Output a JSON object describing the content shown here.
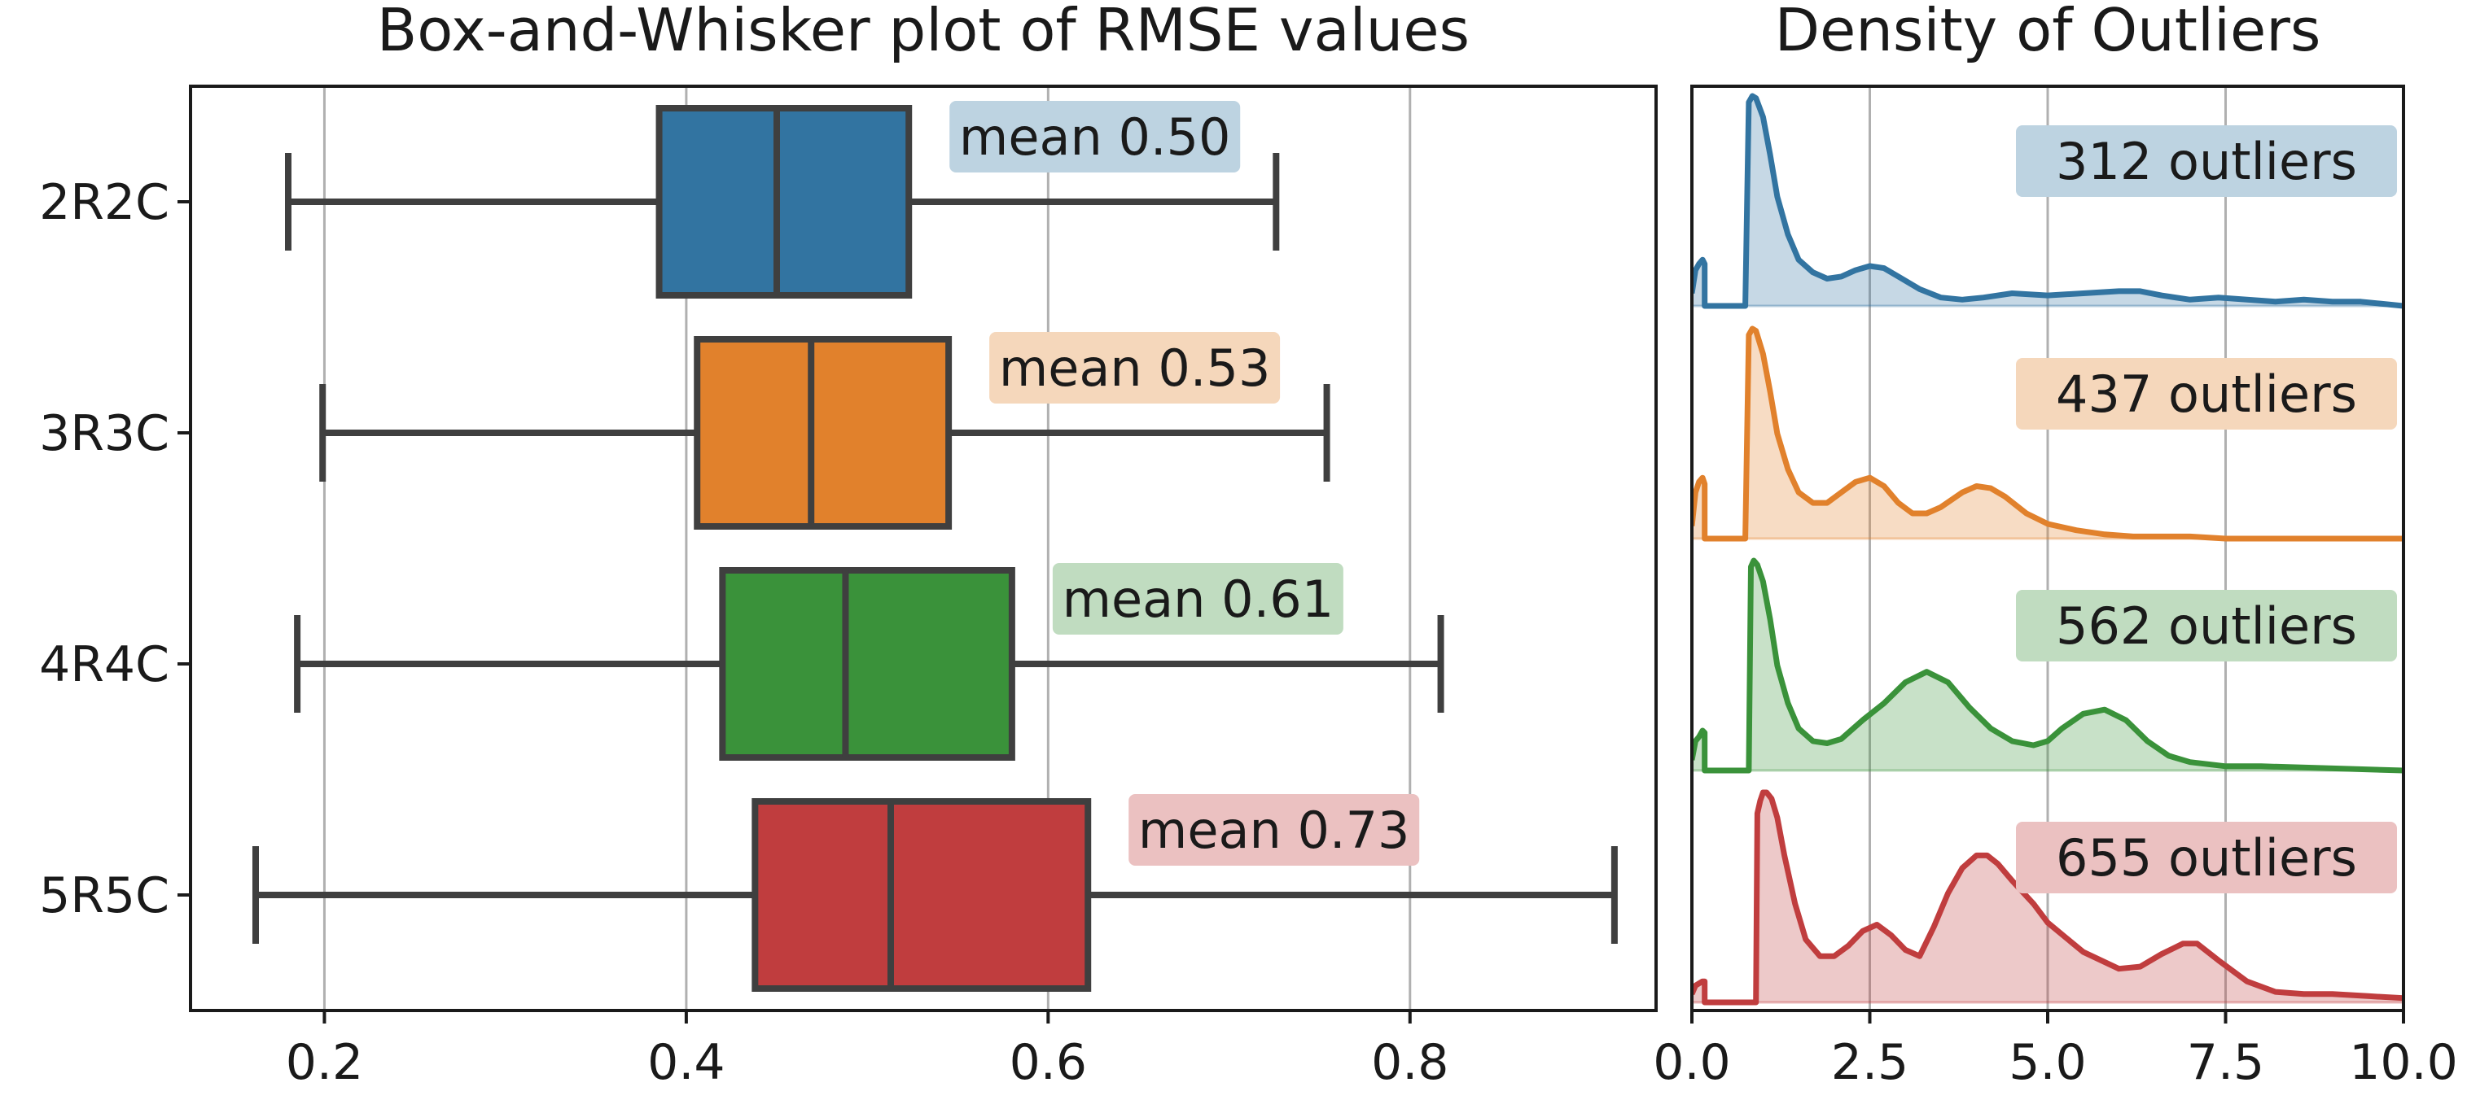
{
  "chart_data": [
    {
      "type": "box",
      "title": "Box-and-Whisker plot of RMSE values",
      "xlabel": "",
      "ylabel": "",
      "xlim": [
        0.126,
        0.936
      ],
      "xticks": [
        "0.2",
        "0.4",
        "0.6",
        "0.8"
      ],
      "xtick_values": [
        0.2,
        0.4,
        0.6,
        0.8
      ],
      "grid": "vertical",
      "categories": [
        "2R2C",
        "3R3C",
        "4R4C",
        "5R5C"
      ],
      "series": [
        {
          "name": "2R2C",
          "whisker_low": 0.18,
          "q1": 0.385,
          "median": 0.45,
          "q3": 0.523,
          "whisker_high": 0.726,
          "annotation": "mean 0.50",
          "color": "#3274a1"
        },
        {
          "name": "3R3C",
          "whisker_low": 0.199,
          "q1": 0.406,
          "median": 0.469,
          "q3": 0.545,
          "whisker_high": 0.754,
          "annotation": "mean 0.53",
          "color": "#e1812c"
        },
        {
          "name": "4R4C",
          "whisker_low": 0.185,
          "q1": 0.42,
          "median": 0.488,
          "q3": 0.58,
          "whisker_high": 0.817,
          "annotation": "mean 0.61",
          "color": "#3a923a"
        },
        {
          "name": "5R5C",
          "whisker_low": 0.162,
          "q1": 0.438,
          "median": 0.513,
          "q3": 0.622,
          "whisker_high": 0.913,
          "annotation": "mean 0.73",
          "color": "#c03d3e"
        }
      ]
    },
    {
      "type": "area",
      "title": "Density of Outliers",
      "xlabel": "",
      "ylabel": "",
      "xlim": [
        0.0,
        10.0
      ],
      "xticks": [
        "0.0",
        "2.5",
        "5.0",
        "7.5",
        "10.0"
      ],
      "xtick_values": [
        0.0,
        2.5,
        5.0,
        7.5,
        10.0
      ],
      "grid": "vertical",
      "ymax": 1.0,
      "series": [
        {
          "name": "2R2C",
          "annotation": "312 outliers",
          "color": "#3274a1",
          "x": [
            0,
            0.05,
            0.1,
            0.15,
            0.18,
            0.18,
            0.4,
            0.6,
            0.7,
            0.72,
            0.75,
            0.8,
            0.85,
            0.9,
            1.0,
            1.1,
            1.2,
            1.35,
            1.5,
            1.7,
            1.9,
            2.1,
            2.3,
            2.5,
            2.7,
            2.9,
            3.2,
            3.5,
            3.8,
            4.1,
            4.5,
            5.0,
            5.5,
            6.0,
            6.3,
            6.6,
            7.0,
            7.4,
            7.8,
            8.2,
            8.6,
            9.0,
            9.4,
            9.7,
            10.0
          ],
          "y": [
            0.06,
            0.17,
            0.2,
            0.22,
            0.2,
            0.0,
            0.0,
            0.0,
            0.0,
            0.0,
            0.0,
            0.97,
            1.0,
            0.99,
            0.9,
            0.72,
            0.52,
            0.34,
            0.22,
            0.16,
            0.13,
            0.14,
            0.17,
            0.19,
            0.18,
            0.14,
            0.08,
            0.04,
            0.03,
            0.04,
            0.06,
            0.05,
            0.06,
            0.07,
            0.07,
            0.05,
            0.03,
            0.04,
            0.03,
            0.02,
            0.03,
            0.02,
            0.02,
            0.01,
            0.0
          ]
        },
        {
          "name": "3R3C",
          "annotation": "437 outliers",
          "color": "#e1812c",
          "x": [
            0,
            0.05,
            0.1,
            0.15,
            0.18,
            0.18,
            0.4,
            0.6,
            0.72,
            0.75,
            0.8,
            0.85,
            0.9,
            1.0,
            1.1,
            1.2,
            1.35,
            1.5,
            1.7,
            1.9,
            2.1,
            2.3,
            2.5,
            2.7,
            2.9,
            3.1,
            3.3,
            3.5,
            3.8,
            4.0,
            4.2,
            4.4,
            4.7,
            5.0,
            5.4,
            5.8,
            6.2,
            6.6,
            7.0,
            7.5,
            8.0,
            9.0,
            10.0
          ],
          "y": [
            0.06,
            0.22,
            0.27,
            0.29,
            0.26,
            0.0,
            0.0,
            0.0,
            0.0,
            0.0,
            0.97,
            1.0,
            0.99,
            0.88,
            0.7,
            0.5,
            0.33,
            0.22,
            0.17,
            0.17,
            0.22,
            0.27,
            0.29,
            0.25,
            0.17,
            0.12,
            0.12,
            0.15,
            0.22,
            0.25,
            0.24,
            0.2,
            0.12,
            0.07,
            0.04,
            0.02,
            0.01,
            0.01,
            0.01,
            0.0,
            0.0,
            0.0,
            0.0
          ]
        },
        {
          "name": "4R4C",
          "annotation": "562 outliers",
          "color": "#3a923a",
          "x": [
            0,
            0.05,
            0.1,
            0.15,
            0.18,
            0.18,
            0.4,
            0.7,
            0.8,
            0.83,
            0.87,
            0.92,
            1.0,
            1.1,
            1.2,
            1.35,
            1.5,
            1.7,
            1.9,
            2.1,
            2.4,
            2.7,
            3.0,
            3.3,
            3.6,
            3.9,
            4.2,
            4.5,
            4.8,
            5.0,
            5.2,
            5.5,
            5.8,
            6.1,
            6.4,
            6.7,
            7.0,
            7.5,
            8.0,
            9.0,
            10.0
          ],
          "y": [
            0.05,
            0.14,
            0.16,
            0.19,
            0.18,
            0.0,
            0.0,
            0.0,
            0.0,
            0.97,
            1.0,
            0.98,
            0.9,
            0.72,
            0.5,
            0.32,
            0.2,
            0.14,
            0.13,
            0.15,
            0.24,
            0.32,
            0.42,
            0.47,
            0.42,
            0.3,
            0.2,
            0.14,
            0.12,
            0.14,
            0.2,
            0.27,
            0.29,
            0.24,
            0.14,
            0.07,
            0.04,
            0.02,
            0.02,
            0.01,
            0.0
          ]
        },
        {
          "name": "5R5C",
          "annotation": "655 outliers",
          "color": "#c03d3e",
          "x": [
            0,
            0.05,
            0.1,
            0.15,
            0.18,
            0.18,
            0.4,
            0.7,
            0.9,
            0.92,
            0.96,
            1.0,
            1.05,
            1.12,
            1.2,
            1.3,
            1.45,
            1.6,
            1.8,
            2.0,
            2.2,
            2.4,
            2.6,
            2.8,
            3.0,
            3.2,
            3.4,
            3.6,
            3.8,
            4.0,
            4.15,
            4.3,
            4.5,
            4.8,
            5.0,
            5.5,
            6.0,
            6.3,
            6.6,
            6.9,
            7.1,
            7.4,
            7.8,
            8.2,
            8.6,
            9.0,
            9.5,
            10.0
          ],
          "y": [
            0.04,
            0.08,
            0.09,
            0.1,
            0.1,
            0.0,
            0.0,
            0.0,
            0.0,
            0.9,
            0.96,
            1.0,
            1.0,
            0.97,
            0.88,
            0.7,
            0.47,
            0.3,
            0.22,
            0.22,
            0.27,
            0.34,
            0.37,
            0.32,
            0.25,
            0.22,
            0.36,
            0.52,
            0.64,
            0.7,
            0.7,
            0.66,
            0.58,
            0.47,
            0.38,
            0.24,
            0.16,
            0.17,
            0.23,
            0.28,
            0.28,
            0.2,
            0.1,
            0.05,
            0.04,
            0.04,
            0.03,
            0.02
          ]
        }
      ]
    }
  ]
}
